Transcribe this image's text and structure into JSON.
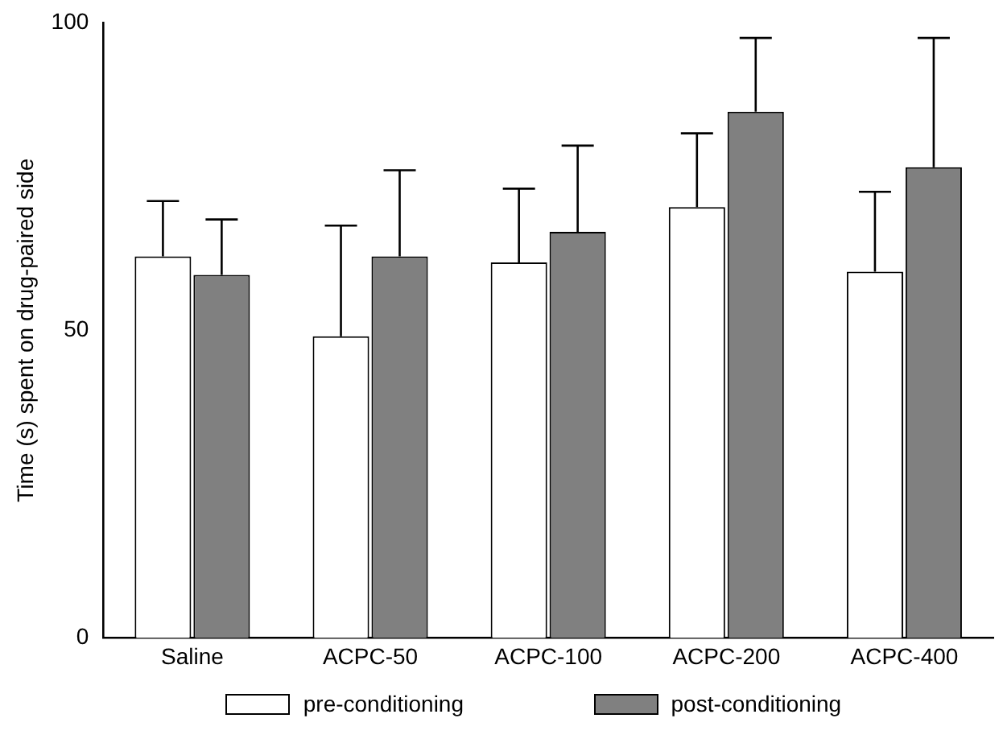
{
  "chart_data": {
    "type": "bar",
    "ylabel": "Time (s) spent on drug-paired side",
    "categories": [
      "Saline",
      "ACPC-50",
      "ACPC-100",
      "ACPC-200",
      "ACPC-400"
    ],
    "series": [
      {
        "name": "pre-conditioning",
        "color": "#ffffff",
        "values": [
          62,
          49,
          61,
          70,
          59.5
        ],
        "errors": [
          [
            62,
            71
          ],
          [
            49,
            67
          ],
          [
            61,
            73
          ],
          [
            70,
            82
          ],
          [
            59.5,
            72.5
          ]
        ]
      },
      {
        "name": "post-conditioning",
        "color": "#808080",
        "values": [
          59,
          62,
          66,
          85.5,
          76.5
        ],
        "errors": [
          [
            59,
            68
          ],
          [
            62,
            76
          ],
          [
            66,
            80
          ],
          [
            85.5,
            97.5
          ],
          [
            76.5,
            97.5
          ]
        ]
      }
    ],
    "ylim": [
      0,
      100
    ],
    "yticks": [
      0,
      50,
      100
    ],
    "grid": false,
    "legend": "bottom"
  }
}
